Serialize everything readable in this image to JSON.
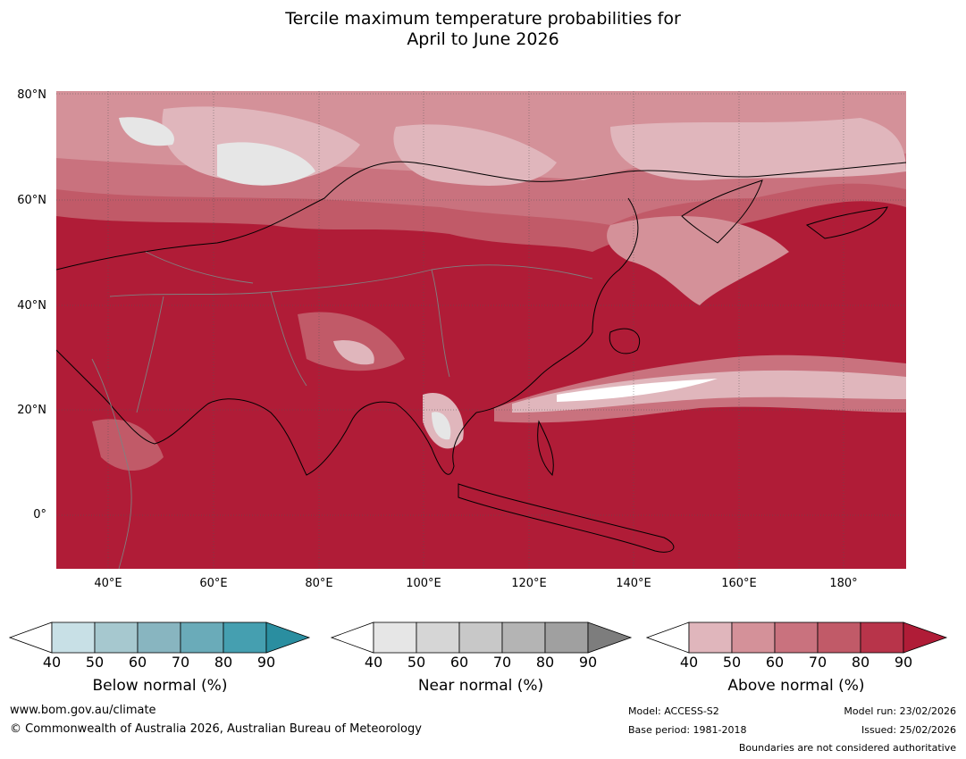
{
  "title": {
    "line1": "Tercile maximum temperature probabilities for",
    "line2": "April to June 2026"
  },
  "map": {
    "lat_labels": [
      "80°N",
      "60°N",
      "40°N",
      "20°N",
      "0°"
    ],
    "lon_labels": [
      "40°E",
      "60°E",
      "80°E",
      "100°E",
      "120°E",
      "140°E",
      "160°E",
      "180°"
    ]
  },
  "colorbars": [
    {
      "name": "Below normal (%)",
      "ticks": [
        "40",
        "50",
        "60",
        "70",
        "80",
        "90"
      ],
      "colors": [
        "#ffffff",
        "#c8e0e6",
        "#a6c8cf",
        "#88b5c0",
        "#6aabb9",
        "#459fb0",
        "#2a8ea0"
      ]
    },
    {
      "name": "Near normal (%)",
      "ticks": [
        "40",
        "50",
        "60",
        "70",
        "80",
        "90"
      ],
      "colors": [
        "#ffffff",
        "#e6e6e6",
        "#d6d6d6",
        "#c8c8c8",
        "#b4b4b4",
        "#a0a0a0",
        "#7d7d7d"
      ]
    },
    {
      "name": "Above normal (%)",
      "ticks": [
        "40",
        "50",
        "60",
        "70",
        "80",
        "90"
      ],
      "colors": [
        "#ffffff",
        "#e0b6bc",
        "#d49199",
        "#c9727e",
        "#c15a68",
        "#b8344a",
        "#b01c37"
      ]
    }
  ],
  "footer": {
    "url": "www.bom.gov.au/climate",
    "copyright": "© Commonwealth of Australia 2026, Australian Bureau of Meteorology",
    "model": "Model: ACCESS-S2",
    "base_period": "Base period: 1981-2018",
    "model_run": "Model run: 23/02/2026",
    "issued": "Issued: 25/02/2026",
    "disclaimer": "Boundaries are not considered authoritative"
  }
}
